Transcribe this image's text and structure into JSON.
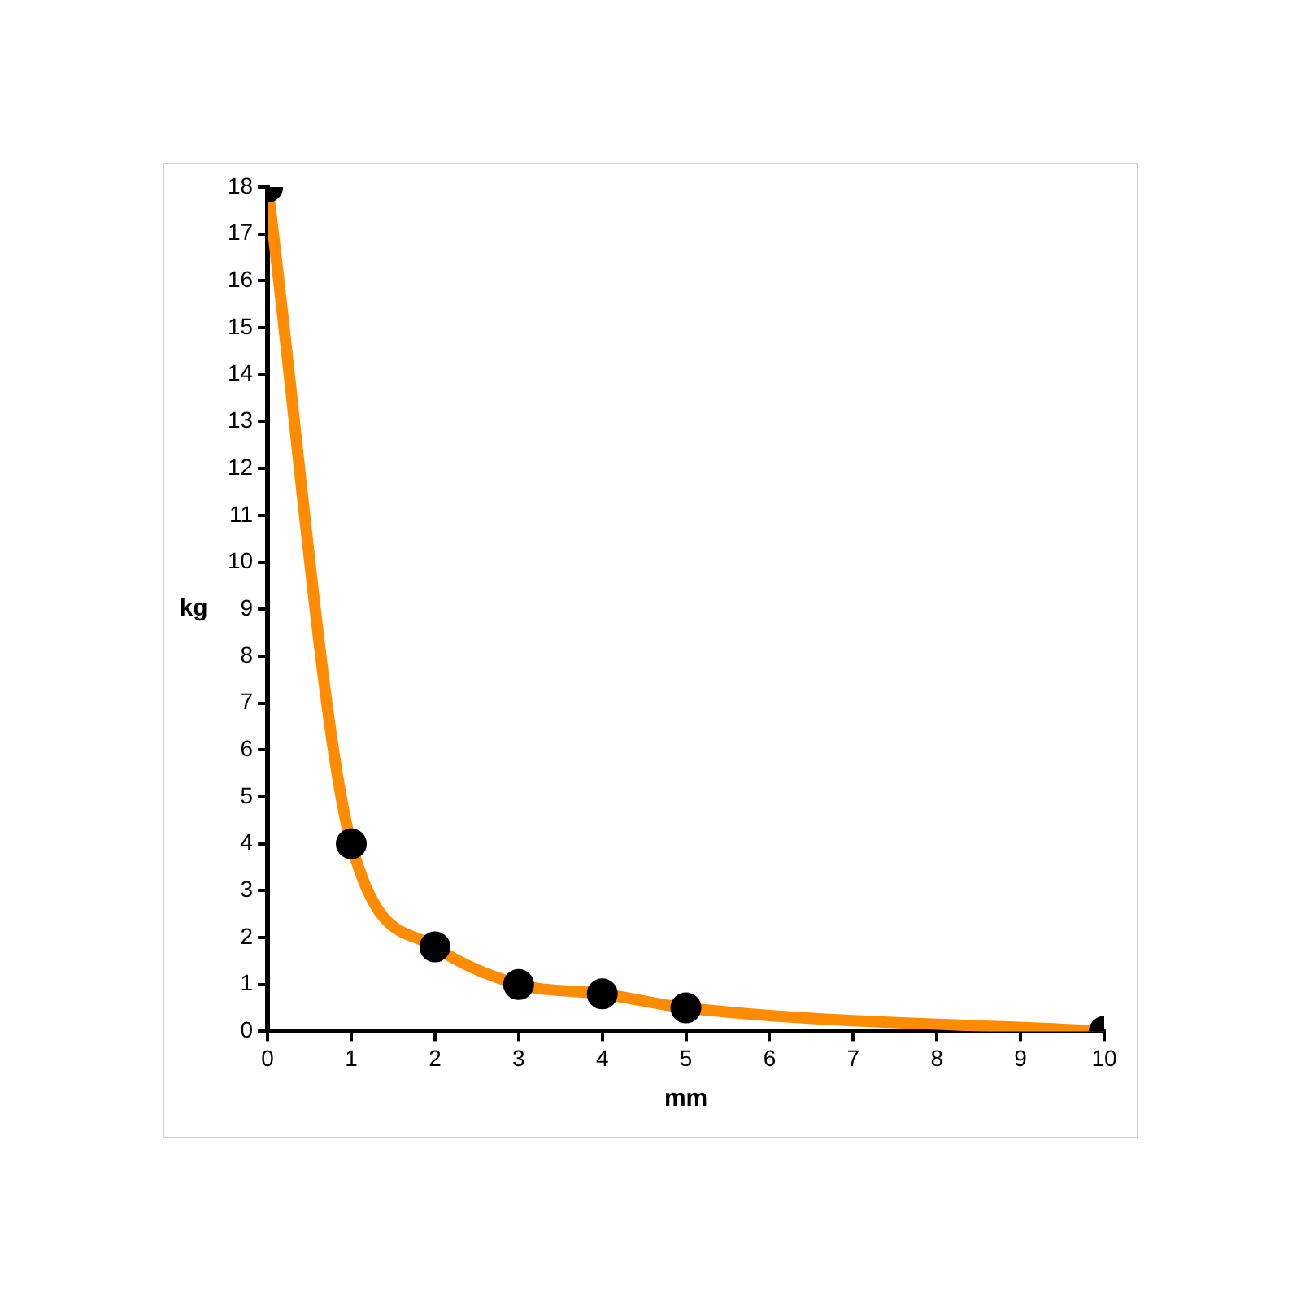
{
  "chart_data": {
    "type": "line",
    "xlabel": "mm",
    "ylabel": "kg",
    "x": [
      0,
      1,
      2,
      3,
      4,
      5,
      10
    ],
    "series": [
      {
        "color": "#ff8c00",
        "values": [
          18,
          4,
          1.8,
          1,
          0.8,
          0.5,
          0
        ]
      }
    ],
    "xlim": [
      0,
      10
    ],
    "xticks": [
      0,
      1,
      2,
      3,
      4,
      5,
      6,
      7,
      8,
      9,
      10
    ],
    "ylim": [
      0,
      18
    ],
    "yticks": [
      0,
      1,
      2,
      3,
      4,
      5,
      6,
      7,
      8,
      9,
      10,
      11,
      12,
      13,
      14,
      15,
      16,
      17,
      18
    ],
    "grid": false,
    "legend": false,
    "marker": "circle",
    "line_style": "solid"
  }
}
